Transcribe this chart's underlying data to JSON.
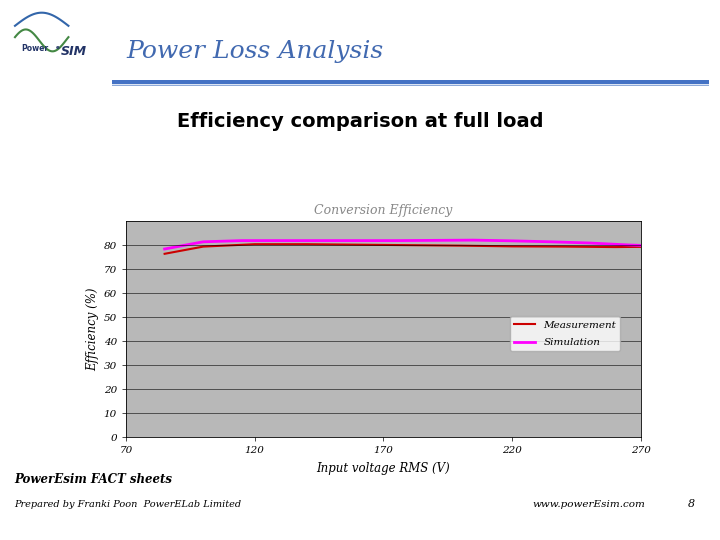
{
  "title_main": "Power Loss Analysis",
  "subtitle": "Efficiency comparison at full load",
  "chart_title": "Conversion Efficiency",
  "xlabel": "Input voltage RMS (V)",
  "ylabel": "Efficiency (%)",
  "xlim": [
    70,
    270
  ],
  "ylim": [
    0,
    90
  ],
  "xticks": [
    70,
    120,
    170,
    220,
    270
  ],
  "yticks": [
    0,
    10,
    20,
    30,
    40,
    50,
    60,
    70,
    80
  ],
  "measurement_x": [
    85,
    100,
    120,
    140,
    160,
    180,
    200,
    220,
    240,
    260,
    270
  ],
  "measurement_y": [
    76.5,
    79.5,
    80.5,
    80.5,
    80.3,
    80.1,
    79.9,
    79.6,
    79.5,
    79.3,
    79.4
  ],
  "simulation_x": [
    85,
    100,
    115,
    130,
    145,
    160,
    175,
    190,
    205,
    220,
    235,
    250,
    265,
    270
  ],
  "simulation_y": [
    78.5,
    81.5,
    82.0,
    82.0,
    82.0,
    82.0,
    82.0,
    82.1,
    82.2,
    81.9,
    81.5,
    81.0,
    80.2,
    80.0
  ],
  "measurement_color": "#cc0000",
  "simulation_color": "#ff00ff",
  "plot_area_color": "#b8b8b8",
  "header_line_color1": "#4472c4",
  "header_line_color2": "#8ea9d8",
  "footer_text1": "PowerEsim FACT sheets",
  "footer_text2": "Prepared by Franki Poon  PowerELab Limited",
  "footer_text3": "www.powerEsim.com",
  "footer_page": "8",
  "bg_color": "#ffffff",
  "title_color": "#4169b0"
}
